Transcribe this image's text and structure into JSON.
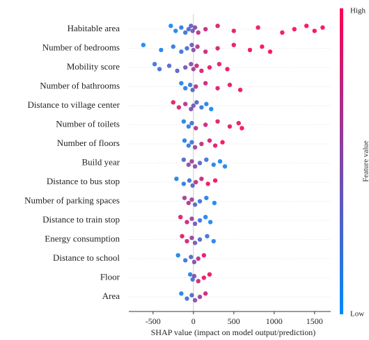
{
  "chart_data": {
    "type": "beeswarm",
    "xlabel": "SHAP value (impact on model output/prediction)",
    "xlim": [
      -800,
      1700
    ],
    "xticks": [
      -500,
      0,
      500,
      1000,
      1500
    ],
    "colorbar": {
      "label": "Feature value",
      "high": "High",
      "low": "Low",
      "colors": [
        "#008bfb",
        "#ff0052"
      ]
    },
    "features": [
      {
        "name": "Habitable area",
        "shap_values": [
          -280,
          -220,
          -150,
          -100,
          -60,
          -30,
          -10,
          20,
          60,
          150,
          300,
          500,
          800,
          1100,
          1250,
          1400,
          1500,
          1600
        ],
        "feature_values": [
          0.05,
          0.1,
          0.15,
          0.2,
          0.3,
          0.35,
          0.4,
          0.55,
          0.7,
          0.8,
          0.85,
          0.88,
          0.92,
          0.95,
          0.97,
          0.98,
          0.99,
          1
        ]
      },
      {
        "name": "Number of bedrooms",
        "shap_values": [
          -620,
          -400,
          -250,
          -150,
          -80,
          -20,
          0,
          50,
          150,
          300,
          500,
          700,
          850,
          950
        ],
        "feature_values": [
          0.05,
          0.1,
          0.15,
          0.2,
          0.25,
          0.4,
          0.5,
          0.7,
          0.8,
          0.85,
          0.9,
          0.95,
          0.97,
          1
        ]
      },
      {
        "name": "Mobility score",
        "shap_values": [
          -480,
          -420,
          -300,
          -200,
          -100,
          -30,
          0,
          40,
          100,
          200,
          320,
          420
        ],
        "feature_values": [
          0.2,
          0.25,
          0.3,
          0.35,
          0.4,
          0.5,
          0.6,
          0.8,
          0.85,
          0.9,
          0.9,
          0.95
        ]
      },
      {
        "name": "Number of bathrooms",
        "shap_values": [
          -150,
          -100,
          -40,
          -10,
          30,
          150,
          300,
          450,
          580
        ],
        "feature_values": [
          0.1,
          0.15,
          0.2,
          0.3,
          0.7,
          0.8,
          0.85,
          0.9,
          0.95
        ]
      },
      {
        "name": "Distance to village center",
        "shap_values": [
          -250,
          -180,
          -100,
          -30,
          0,
          40,
          100,
          160,
          220
        ],
        "feature_values": [
          0.9,
          0.85,
          0.7,
          0.5,
          0.4,
          0.3,
          0.2,
          0.1,
          0.05
        ]
      },
      {
        "name": "Number of toilets",
        "shap_values": [
          -120,
          -60,
          -20,
          30,
          150,
          300,
          450,
          560,
          600
        ],
        "feature_values": [
          0.1,
          0.15,
          0.2,
          0.7,
          0.8,
          0.85,
          0.9,
          0.95,
          1
        ]
      },
      {
        "name": "Number of floors",
        "shap_values": [
          -110,
          -60,
          -20,
          20,
          100,
          200,
          270,
          360
        ],
        "feature_values": [
          0.1,
          0.15,
          0.2,
          0.6,
          0.75,
          0.85,
          0.9,
          1
        ]
      },
      {
        "name": "Build year",
        "shap_values": [
          -120,
          -60,
          -20,
          20,
          80,
          160,
          250,
          330,
          390
        ],
        "feature_values": [
          0.3,
          0.5,
          0.6,
          0.5,
          0.3,
          0.2,
          0.1,
          0.05,
          0.05
        ]
      },
      {
        "name": "Distance to bus stop",
        "shap_values": [
          -210,
          -120,
          -50,
          -10,
          30,
          100,
          180,
          270
        ],
        "feature_values": [
          0.1,
          0.15,
          0.2,
          0.3,
          0.7,
          0.8,
          0.9,
          0.95
        ]
      },
      {
        "name": "Number of parking spaces",
        "shap_values": [
          -110,
          -60,
          -20,
          20,
          80,
          160,
          260
        ],
        "feature_values": [
          0.6,
          0.7,
          0.6,
          0.3,
          0.2,
          0.1,
          0.05
        ]
      },
      {
        "name": "Distance to train stop",
        "shap_values": [
          -160,
          -80,
          -20,
          20,
          80,
          150,
          210
        ],
        "feature_values": [
          0.9,
          0.8,
          0.6,
          0.4,
          0.2,
          0.1,
          0.05
        ]
      },
      {
        "name": "Energy consumption",
        "shap_values": [
          -140,
          -80,
          -20,
          20,
          80,
          170,
          250
        ],
        "feature_values": [
          0.9,
          0.8,
          0.6,
          0.4,
          0.3,
          0.2,
          0.1
        ]
      },
      {
        "name": "Distance to school",
        "shap_values": [
          -190,
          -100,
          -30,
          10,
          60,
          130
        ],
        "feature_values": [
          0.1,
          0.2,
          0.3,
          0.5,
          0.7,
          0.9
        ]
      },
      {
        "name": "Floor",
        "shap_values": [
          -40,
          -10,
          10,
          60,
          130,
          200
        ],
        "feature_values": [
          0.1,
          0.2,
          0.5,
          0.8,
          0.9,
          0.95
        ]
      },
      {
        "name": "Area",
        "shap_values": [
          -150,
          -80,
          -20,
          20,
          80,
          150
        ],
        "feature_values": [
          0.1,
          0.2,
          0.3,
          0.5,
          0.6,
          0.8
        ]
      }
    ]
  }
}
